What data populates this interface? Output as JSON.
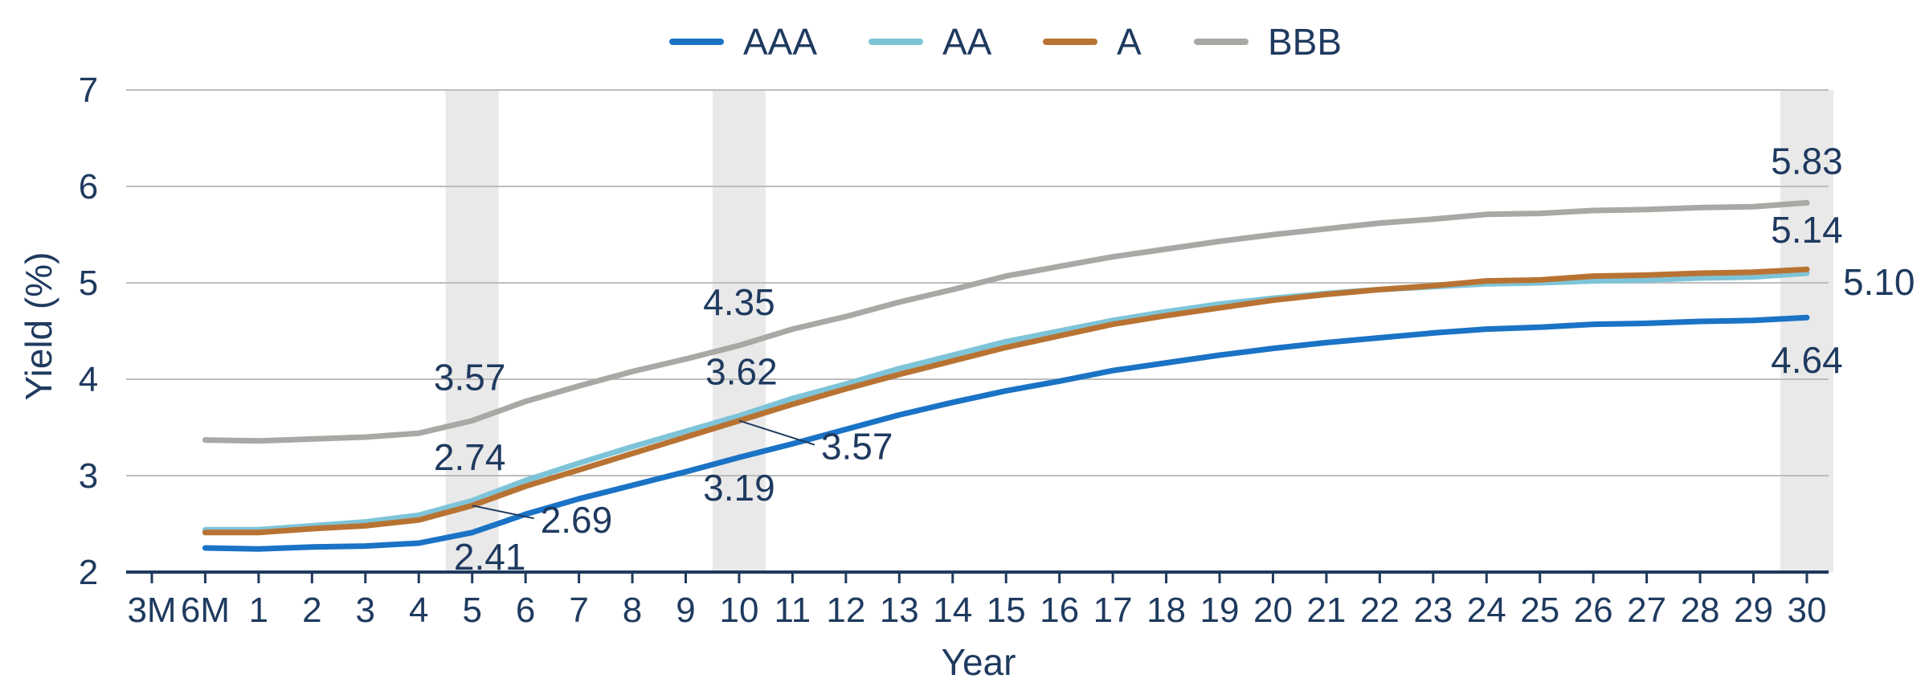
{
  "chart_data": {
    "type": "line",
    "categories": [
      "3M",
      "6M",
      "1",
      "2",
      "3",
      "4",
      "5",
      "6",
      "7",
      "8",
      "9",
      "10",
      "11",
      "12",
      "13",
      "14",
      "15",
      "16",
      "17",
      "18",
      "19",
      "20",
      "21",
      "22",
      "23",
      "24",
      "25",
      "26",
      "27",
      "28",
      "29",
      "30"
    ],
    "xlabel": "Year",
    "ylabel": "Yield (%)",
    "ylim": [
      2,
      7
    ],
    "yticks": [
      2,
      3,
      4,
      5,
      6,
      7
    ],
    "grid": true,
    "legend_position": "top-center",
    "highlighted_years": [
      "5",
      "10",
      "30"
    ],
    "series": [
      {
        "name": "AAA",
        "color": "#1a73c5",
        "values": [
          null,
          2.25,
          2.24,
          2.26,
          2.27,
          2.3,
          2.41,
          2.6,
          2.76,
          2.9,
          3.04,
          3.19,
          3.33,
          3.48,
          3.63,
          3.76,
          3.88,
          3.98,
          4.09,
          4.17,
          4.25,
          4.32,
          4.38,
          4.43,
          4.48,
          4.52,
          4.54,
          4.57,
          4.58,
          4.6,
          4.61,
          4.64
        ]
      },
      {
        "name": "AA",
        "color": "#7ec4d8",
        "values": [
          null,
          2.44,
          2.44,
          2.48,
          2.52,
          2.59,
          2.74,
          2.95,
          3.13,
          3.3,
          3.46,
          3.62,
          3.8,
          3.95,
          4.11,
          4.25,
          4.39,
          4.5,
          4.61,
          4.7,
          4.78,
          4.84,
          4.89,
          4.93,
          4.96,
          4.99,
          5.0,
          5.02,
          5.03,
          5.05,
          5.06,
          5.1
        ]
      },
      {
        "name": "A",
        "color": "#b87333",
        "values": [
          null,
          2.41,
          2.41,
          2.45,
          2.48,
          2.54,
          2.69,
          2.89,
          3.06,
          3.23,
          3.4,
          3.57,
          3.74,
          3.9,
          4.05,
          4.19,
          4.33,
          4.45,
          4.57,
          4.66,
          4.74,
          4.82,
          4.88,
          4.93,
          4.97,
          5.02,
          5.03,
          5.07,
          5.08,
          5.1,
          5.11,
          5.14
        ]
      },
      {
        "name": "BBB",
        "color": "#a8a8a4",
        "values": [
          null,
          3.37,
          3.36,
          3.38,
          3.4,
          3.44,
          3.57,
          3.77,
          3.93,
          4.08,
          4.21,
          4.35,
          4.52,
          4.65,
          4.8,
          4.93,
          5.07,
          5.17,
          5.27,
          5.35,
          5.43,
          5.5,
          5.56,
          5.62,
          5.66,
          5.71,
          5.72,
          5.75,
          5.76,
          5.78,
          5.79,
          5.83
        ]
      }
    ],
    "data_labels": [
      {
        "series": "BBB",
        "category": "5",
        "text": "3.57"
      },
      {
        "series": "AA",
        "category": "5",
        "text": "2.74"
      },
      {
        "series": "A",
        "category": "5",
        "text": "2.69"
      },
      {
        "series": "AAA",
        "category": "5",
        "text": "2.41"
      },
      {
        "series": "BBB",
        "category": "10",
        "text": "4.35"
      },
      {
        "series": "AA",
        "category": "10",
        "text": "3.62"
      },
      {
        "series": "A",
        "category": "10",
        "text": "3.57"
      },
      {
        "series": "AAA",
        "category": "10",
        "text": "3.19"
      },
      {
        "series": "BBB",
        "category": "30",
        "text": "5.83"
      },
      {
        "series": "A",
        "category": "30",
        "text": "5.14"
      },
      {
        "series": "AA",
        "category": "30",
        "text": "5.10"
      },
      {
        "series": "AAA",
        "category": "30",
        "text": "4.64"
      }
    ]
  }
}
